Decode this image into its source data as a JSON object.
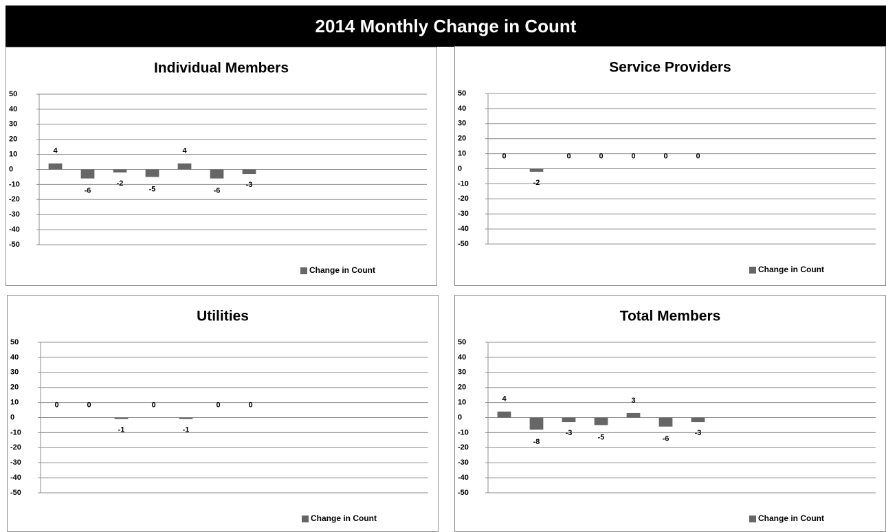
{
  "title": "2014 Monthly Change in Count",
  "chart_data": [
    {
      "type": "bar",
      "title": "Individual Members",
      "categories": [
        null,
        null,
        null,
        null,
        null,
        null,
        null,
        null,
        null,
        null,
        null,
        null
      ],
      "series": [
        {
          "name": "Change in Count",
          "color": "#666666",
          "values": [
            4,
            -6,
            -2,
            -5,
            4,
            -6,
            -3,
            null,
            null,
            null,
            null,
            null
          ]
        }
      ],
      "ylim": [
        -50,
        50
      ],
      "yticks": [
        -50,
        -40,
        -30,
        -20,
        -10,
        0,
        10,
        20,
        30,
        40,
        50
      ],
      "grid": true,
      "legend": "bottom-right"
    },
    {
      "type": "bar",
      "title": "Service Providers",
      "categories": [
        null,
        null,
        null,
        null,
        null,
        null,
        null,
        null,
        null,
        null,
        null,
        null
      ],
      "series": [
        {
          "name": "Change in Count",
          "color": "#666666",
          "values": [
            0,
            -2,
            0,
            0,
            0,
            0,
            0,
            null,
            null,
            null,
            null,
            null
          ]
        }
      ],
      "ylim": [
        -50,
        50
      ],
      "yticks": [
        -50,
        -40,
        -30,
        -20,
        -10,
        0,
        10,
        20,
        30,
        40,
        50
      ],
      "grid": true,
      "legend": "bottom-right"
    },
    {
      "type": "bar",
      "title": "Utilities",
      "categories": [
        null,
        null,
        null,
        null,
        null,
        null,
        null,
        null,
        null,
        null,
        null,
        null
      ],
      "series": [
        {
          "name": "Change in Count",
          "color": "#666666",
          "values": [
            0,
            0,
            -1,
            0,
            -1,
            0,
            0,
            null,
            null,
            null,
            null,
            null
          ]
        }
      ],
      "ylim": [
        -50,
        50
      ],
      "yticks": [
        -50,
        -40,
        -30,
        -20,
        -10,
        0,
        10,
        20,
        30,
        40,
        50
      ],
      "grid": true,
      "legend": "bottom-right"
    },
    {
      "type": "bar",
      "title": "Total Members",
      "categories": [
        null,
        null,
        null,
        null,
        null,
        null,
        null,
        null,
        null,
        null,
        null,
        null
      ],
      "series": [
        {
          "name": "Change in Count",
          "color": "#666666",
          "values": [
            4,
            -8,
            -3,
            -5,
            3,
            -6,
            -3,
            null,
            null,
            null,
            null,
            null
          ]
        }
      ],
      "ylim": [
        -50,
        50
      ],
      "yticks": [
        -50,
        -40,
        -30,
        -20,
        -10,
        0,
        10,
        20,
        30,
        40,
        50
      ],
      "grid": true,
      "legend": "bottom-right"
    }
  ]
}
